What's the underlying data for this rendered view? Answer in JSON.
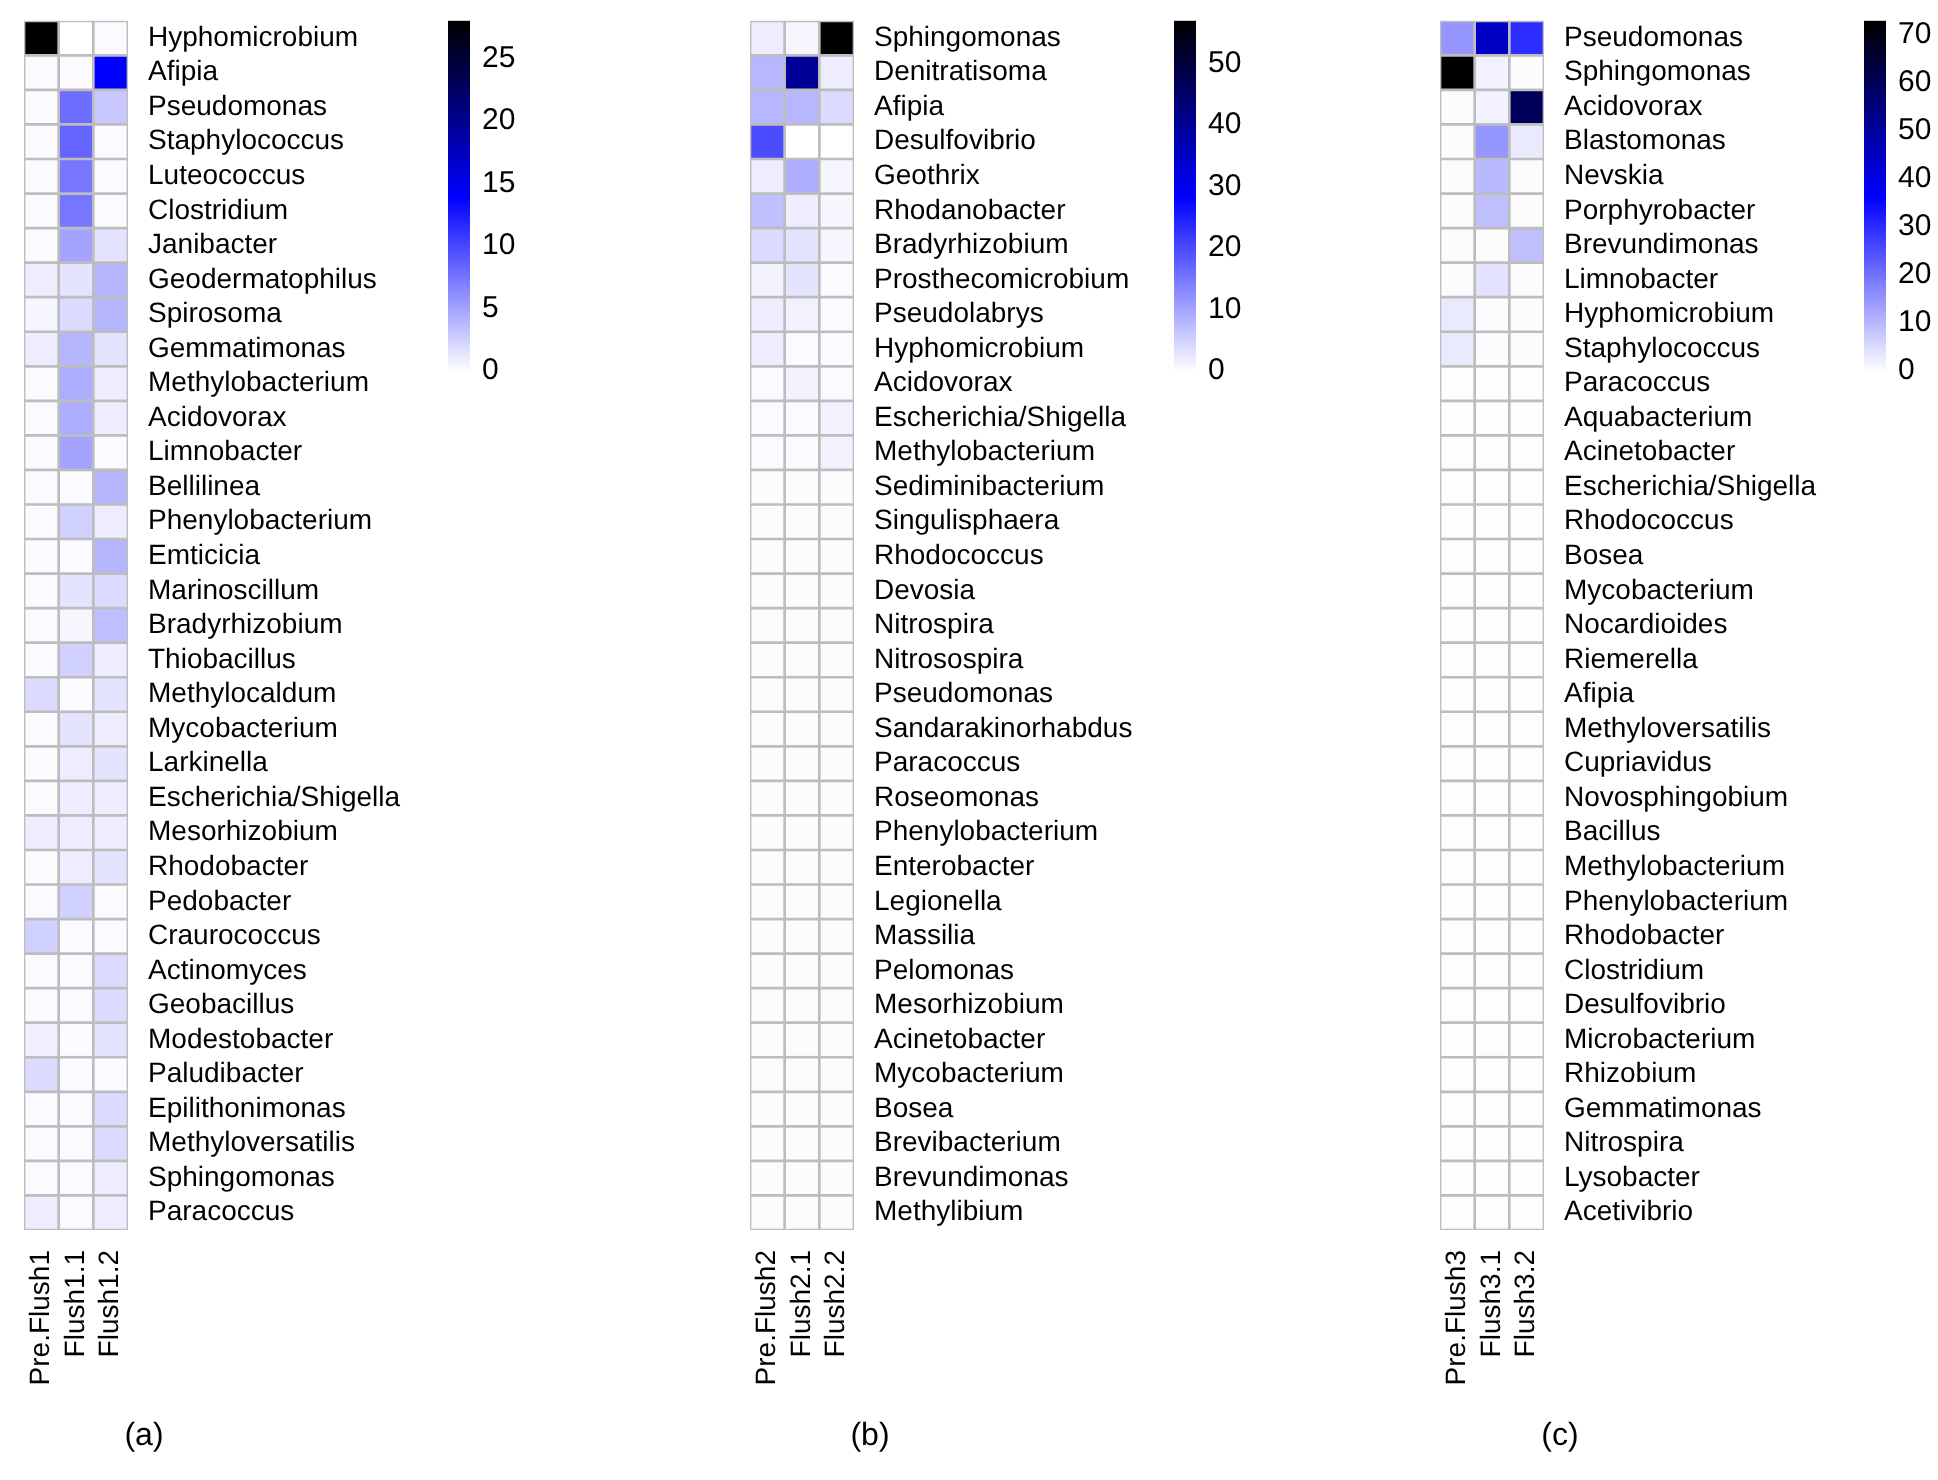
{
  "chart_data": [
    {
      "type": "heatmap",
      "annotations": [
        "(a)"
      ],
      "categories": [
        "Pre.Flush1",
        "Flush1.1",
        "Flush1.2"
      ],
      "y_categories": [
        "Hyphomicrobium",
        "Afipia",
        "Pseudomonas",
        "Staphylococcus",
        "Luteococcus",
        "Clostridium",
        "Janibacter",
        "Geodermatophilus",
        "Spirosoma",
        "Gemmatimonas",
        "Methylobacterium",
        "Acidovorax",
        "Limnobacter",
        "Bellilinea",
        "Phenylobacterium",
        "Emticicia",
        "Marinoscillum",
        "Bradyrhizobium",
        "Thiobacillus",
        "Methylocaldum",
        "Mycobacterium",
        "Larkinella",
        "Escherichia/Shigella",
        "Mesorhizobium",
        "Rhodobacter",
        "Pedobacter",
        "Craurococcus",
        "Actinomyces",
        "Geobacillus",
        "Modestobacter",
        "Paludibacter",
        "Epilithonimonas",
        "Methyloversatilis",
        "Sphingomonas",
        "Paracoccus"
      ],
      "cells": [
        [
          28,
          0,
          0.3
        ],
        [
          0.2,
          0.2,
          14
        ],
        [
          0.3,
          8,
          3
        ],
        [
          0.2,
          8.5,
          0.3
        ],
        [
          0.2,
          7.5,
          0.3
        ],
        [
          0.2,
          7.5,
          0.3
        ],
        [
          0.3,
          5,
          1.5
        ],
        [
          1,
          1.5,
          4
        ],
        [
          0.5,
          2,
          4
        ],
        [
          1,
          4,
          1.5
        ],
        [
          0.3,
          4.5,
          1
        ],
        [
          0.3,
          4.5,
          1
        ],
        [
          0.3,
          5,
          0.3
        ],
        [
          0.3,
          0.3,
          4
        ],
        [
          0.3,
          2.5,
          1
        ],
        [
          0.3,
          0.3,
          4
        ],
        [
          0.3,
          1.5,
          2
        ],
        [
          0.3,
          0.5,
          3.5
        ],
        [
          0.3,
          2.5,
          1
        ],
        [
          2,
          0.3,
          1.5
        ],
        [
          0.3,
          1.5,
          1
        ],
        [
          0.3,
          1,
          1.5
        ],
        [
          0.3,
          1,
          1
        ],
        [
          1,
          1,
          1
        ],
        [
          0.3,
          1,
          1.5
        ],
        [
          0.3,
          2.5,
          0.3
        ],
        [
          2.5,
          0.3,
          0.3
        ],
        [
          0.3,
          0.3,
          2
        ],
        [
          0.3,
          0.3,
          2
        ],
        [
          0.8,
          0.3,
          1.5
        ],
        [
          2,
          0.3,
          0.3
        ],
        [
          0.3,
          0.3,
          2
        ],
        [
          0.3,
          0.3,
          2
        ],
        [
          0.3,
          0.3,
          1
        ],
        [
          1,
          0.3,
          1
        ]
      ],
      "clim": [
        0,
        28
      ],
      "cticks": [
        0,
        5,
        10,
        15,
        20,
        25
      ]
    },
    {
      "type": "heatmap",
      "annotations": [
        "(b)"
      ],
      "categories": [
        "Pre.Flush2",
        "Flush2.1",
        "Flush2.2"
      ],
      "y_categories": [
        "Sphingomonas",
        "Denitratisoma",
        "Afipia",
        "Desulfovibrio",
        "Geothrix",
        "Rhodanobacter",
        "Bradyrhizobium",
        "Prosthecomicrobium",
        "Pseudolabrys",
        "Hyphomicrobium",
        "Acidovorax",
        "Escherichia/Shigella",
        "Methylobacterium",
        "Sediminibacterium",
        "Singulisphaera",
        "Rhodococcus",
        "Devosia",
        "Nitrospira",
        "Nitrosospira",
        "Pseudomonas",
        "Sandarakinorhabdus",
        "Paracoccus",
        "Roseomonas",
        "Phenylobacterium",
        "Enterobacter",
        "Legionella",
        "Massilia",
        "Pelomonas",
        "Mesorhizobium",
        "Acinetobacter",
        "Mycobacterium",
        "Bosea",
        "Brevibacterium",
        "Brevundimonas",
        "Methylibium"
      ],
      "cells": [
        [
          2,
          1,
          57
        ],
        [
          8,
          40,
          2
        ],
        [
          8,
          8,
          4
        ],
        [
          20,
          0,
          0
        ],
        [
          2,
          9,
          1
        ],
        [
          7,
          2,
          1
        ],
        [
          4,
          3,
          1
        ],
        [
          1.5,
          3,
          0.5
        ],
        [
          2,
          1.5,
          0.5
        ],
        [
          2,
          0.5,
          0.5
        ],
        [
          0.5,
          1.5,
          0.5
        ],
        [
          0.5,
          0.5,
          1.5
        ],
        [
          0.5,
          0.5,
          1.5
        ],
        [
          0.3,
          0.3,
          0.3
        ],
        [
          0.3,
          0.3,
          0.3
        ],
        [
          0.3,
          0.3,
          0.3
        ],
        [
          0.3,
          0.3,
          0.3
        ],
        [
          0.3,
          0.3,
          0.3
        ],
        [
          0.3,
          0.3,
          0.3
        ],
        [
          0.3,
          0.3,
          0.3
        ],
        [
          0.3,
          0.3,
          0.3
        ],
        [
          0.3,
          0.3,
          0.3
        ],
        [
          0.3,
          0.3,
          0.3
        ],
        [
          0.3,
          0.3,
          0.3
        ],
        [
          0.3,
          0.3,
          0.3
        ],
        [
          0.3,
          0.3,
          0.3
        ],
        [
          0.3,
          0.3,
          0.3
        ],
        [
          0.3,
          0.3,
          0.3
        ],
        [
          0.3,
          0.3,
          0.3
        ],
        [
          0.3,
          0.3,
          0.3
        ],
        [
          0.3,
          0.3,
          0.3
        ],
        [
          0.3,
          0.3,
          0.3
        ],
        [
          0.3,
          0.3,
          0.3
        ],
        [
          0.3,
          0.3,
          0.3
        ],
        [
          0.3,
          0.3,
          0.3
        ]
      ],
      "clim": [
        0,
        57
      ],
      "cticks": [
        0,
        10,
        20,
        30,
        40,
        50
      ]
    },
    {
      "type": "heatmap",
      "annotations": [
        "(c)"
      ],
      "categories": [
        "Pre.Flush3",
        "Flush3.1",
        "Flush3.2"
      ],
      "y_categories": [
        "Pseudomonas",
        "Sphingomonas",
        "Acidovorax",
        "Blastomonas",
        "Nevskia",
        "Porphyrobacter",
        "Brevundimonas",
        "Limnobacter",
        "Hyphomicrobium",
        "Staphylococcus",
        "Paracoccus",
        "Aquabacterium",
        "Acinetobacter",
        "Escherichia/Shigella",
        "Rhodococcus",
        "Bosea",
        "Mycobacterium",
        "Nocardioides",
        "Riemerella",
        "Afipia",
        "Methyloversatilis",
        "Cupriavidus",
        "Novosphingobium",
        "Bacillus",
        "Methylobacterium",
        "Phenylobacterium",
        "Rhodobacter",
        "Clostridium",
        "Desulfovibrio",
        "Microbacterium",
        "Rhizobium",
        "Gemmatimonas",
        "Nitrospira",
        "Lysobacter",
        "Acetivibrio"
      ],
      "cells": [
        [
          15,
          45,
          30
        ],
        [
          73,
          2,
          0.5
        ],
        [
          0.5,
          2,
          60
        ],
        [
          0.5,
          15,
          3
        ],
        [
          0.5,
          10,
          0.5
        ],
        [
          0.5,
          9,
          0.5
        ],
        [
          0.5,
          0.5,
          9
        ],
        [
          0.5,
          4,
          0.5
        ],
        [
          3,
          0.5,
          0.5
        ],
        [
          3,
          0.5,
          0.5
        ],
        [
          0.3,
          0.3,
          0.3
        ],
        [
          0.3,
          0.3,
          0.3
        ],
        [
          0.3,
          0.3,
          0.3
        ],
        [
          0.3,
          0.3,
          0.3
        ],
        [
          0.3,
          0.3,
          0.3
        ],
        [
          0.3,
          0.3,
          0.3
        ],
        [
          0.3,
          0.3,
          0.3
        ],
        [
          0.3,
          0.3,
          0.3
        ],
        [
          0.3,
          0.3,
          0.3
        ],
        [
          0.3,
          0.3,
          0.3
        ],
        [
          0.3,
          0.3,
          0.3
        ],
        [
          0.3,
          0.3,
          0.3
        ],
        [
          0.3,
          0.3,
          0.3
        ],
        [
          0.3,
          0.3,
          0.3
        ],
        [
          0.3,
          0.3,
          0.3
        ],
        [
          0.3,
          0.3,
          0.3
        ],
        [
          0.3,
          0.3,
          0.3
        ],
        [
          0.3,
          0.3,
          0.3
        ],
        [
          0.3,
          0.3,
          0.3
        ],
        [
          0.3,
          0.3,
          0.3
        ],
        [
          0.3,
          0.3,
          0.3
        ],
        [
          0.3,
          0.3,
          0.3
        ],
        [
          0.3,
          0.3,
          0.3
        ],
        [
          0.3,
          0.3,
          0.3
        ],
        [
          0.3,
          0.3,
          0.3
        ]
      ],
      "clim": [
        0,
        73
      ],
      "cticks": [
        0,
        10,
        20,
        30,
        40,
        50,
        60,
        70
      ]
    }
  ]
}
